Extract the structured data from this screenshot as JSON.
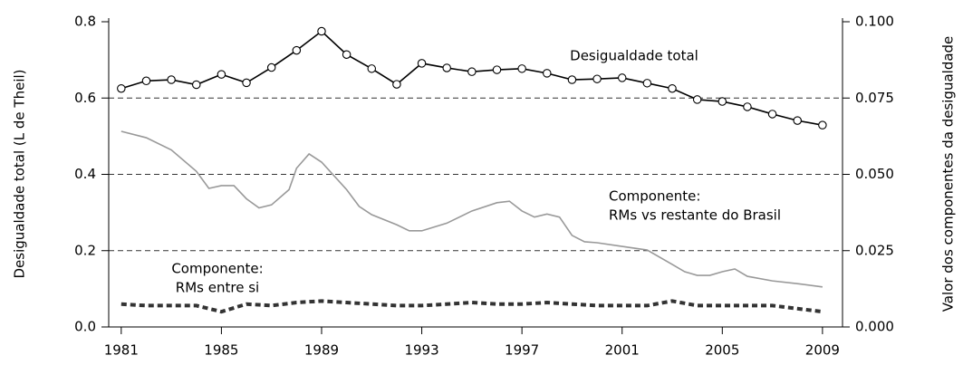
{
  "chart_data": {
    "type": "line",
    "ylabel": "Desigualdade total (L de Theil)",
    "y2label": "Valor dos componentes da desigualdade",
    "xlim": [
      1980.5,
      2009.8
    ],
    "xticks": [
      1981,
      1985,
      1989,
      1993,
      1997,
      2001,
      2005,
      2009
    ],
    "ylim": [
      0,
      0.8
    ],
    "yticks": [
      {
        "value": 0,
        "label": "0.0"
      },
      0.2,
      0.4,
      0.6,
      0.8
    ],
    "y2lim": [
      0,
      0.1
    ],
    "y2ticks": [
      {
        "value": 0,
        "label": "0.000"
      },
      0.025,
      {
        "value": 0.05,
        "label": "0.050"
      },
      0.075,
      {
        "value": 0.1,
        "label": "0.100"
      }
    ],
    "grid": true,
    "annotations": [
      [
        "Desigualdade total"
      ],
      [
        "Componente:",
        "RMs vs restante do Brasil"
      ],
      [
        "Componente:",
        "RMs entre si"
      ]
    ],
    "series": [
      {
        "name": "Desigualdade total",
        "color": "#000000",
        "markers": true,
        "linestyle": "solid",
        "x": [
          1981,
          1982,
          1983,
          1984,
          1985,
          1986,
          1987,
          1988,
          1989,
          1990,
          1991,
          1992,
          1993,
          1994,
          1995,
          1996,
          1997,
          1998,
          1999,
          2000,
          2001,
          2002,
          2003,
          2004,
          2005,
          2006,
          2007,
          2008,
          2009
        ],
        "values": [
          0.625,
          0.645,
          0.648,
          0.635,
          0.662,
          0.64,
          0.68,
          0.725,
          0.775,
          0.714,
          0.677,
          0.636,
          0.691,
          0.679,
          0.669,
          0.674,
          0.677,
          0.665,
          0.648,
          0.65,
          0.653,
          0.639,
          0.625,
          0.596,
          0.591,
          0.577,
          0.558,
          0.541,
          0.529
        ]
      },
      {
        "name": "Componente: RMs vs restante do Brasil",
        "color": "#999999",
        "markers": false,
        "linestyle": "solid",
        "axis": "y2",
        "x": [
          1981,
          1982,
          1983,
          1984,
          1984.5,
          1985,
          1985.5,
          1986,
          1986.5,
          1987,
          1987.7,
          1988,
          1988.5,
          1989,
          1990,
          1990.5,
          1991,
          1992,
          1992.5,
          1993,
          1994,
          1995,
          1996,
          1996.5,
          1997,
          1997.5,
          1998,
          1998.5,
          1999,
          1999.5,
          2000,
          2001,
          2002,
          2003,
          2003.5,
          2004,
          2004.5,
          2005,
          2005.5,
          2006,
          2007,
          2008,
          2009
        ],
        "values": [
          0.0641,
          0.062,
          0.058,
          0.051,
          0.0454,
          0.0463,
          0.0463,
          0.042,
          0.039,
          0.04,
          0.045,
          0.052,
          0.0567,
          0.054,
          0.045,
          0.0395,
          0.0368,
          0.0335,
          0.0315,
          0.0315,
          0.034,
          0.038,
          0.0407,
          0.0412,
          0.038,
          0.036,
          0.037,
          0.036,
          0.03,
          0.0279,
          0.0276,
          0.0264,
          0.0252,
          0.0205,
          0.0181,
          0.0169,
          0.0169,
          0.0181,
          0.019,
          0.0166,
          0.0151,
          0.0142,
          0.0131
        ]
      },
      {
        "name": "Componente: RMs entre si",
        "color": "#333333",
        "markers": false,
        "linestyle": "dashed",
        "axis": "y2",
        "x": [
          1981,
          1982,
          1983,
          1984,
          1985,
          1986,
          1987,
          1988,
          1989,
          1990,
          1991,
          1992,
          1993,
          1994,
          1995,
          1996,
          1997,
          1998,
          1999,
          2000,
          2001,
          2002,
          2003,
          2004,
          2005,
          2006,
          2007,
          2008,
          2009
        ],
        "values": [
          0.0075,
          0.007,
          0.007,
          0.007,
          0.005,
          0.0075,
          0.007,
          0.008,
          0.0085,
          0.008,
          0.0075,
          0.007,
          0.007,
          0.0075,
          0.008,
          0.0075,
          0.0075,
          0.008,
          0.0075,
          0.007,
          0.007,
          0.007,
          0.0085,
          0.007,
          0.007,
          0.007,
          0.007,
          0.006,
          0.005
        ]
      }
    ]
  }
}
